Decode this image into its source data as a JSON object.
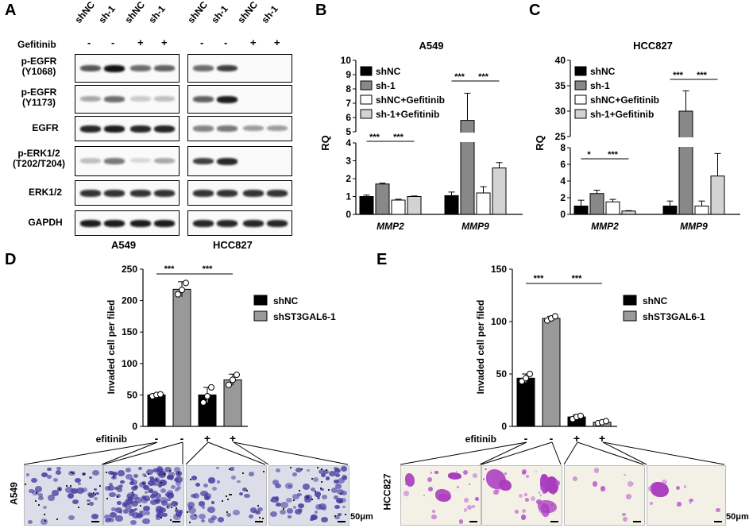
{
  "panels": {
    "A": {
      "letter": "A",
      "lanes": [
        "shNC",
        "sh-1",
        "shNC",
        "sh-1"
      ],
      "gefitinib_label": "Gefitinib",
      "gefitinib_signs": [
        "-",
        "-",
        "+",
        "+"
      ],
      "rows": [
        {
          "line1": "p-EGFR",
          "line2": "(Y1068)"
        },
        {
          "line1": "p-EGFR",
          "line2": "(Y1173)"
        },
        {
          "line1": "EGFR",
          "line2": ""
        },
        {
          "line1": "p-ERK1/2",
          "line2": "(T202/T204)"
        },
        {
          "line1": "ERK1/2",
          "line2": ""
        },
        {
          "line1": "GAPDH",
          "line2": ""
        }
      ],
      "cell_lines": [
        "A549",
        "HCC827"
      ],
      "band_intensity": {
        "A549": [
          [
            0.7,
            1.0,
            0.6,
            0.65
          ],
          [
            0.35,
            0.6,
            0.2,
            0.25
          ],
          [
            0.9,
            0.95,
            0.9,
            0.92
          ],
          [
            0.25,
            0.55,
            0.15,
            0.35
          ],
          [
            0.85,
            0.85,
            0.85,
            0.85
          ],
          [
            0.95,
            0.95,
            0.95,
            0.95
          ]
        ],
        "HCC827": [
          [
            0.6,
            0.8,
            0,
            0
          ],
          [
            0.65,
            0.95,
            0,
            0
          ],
          [
            0.5,
            0.55,
            0.4,
            0.4
          ],
          [
            0.8,
            0.9,
            0,
            0
          ],
          [
            0.85,
            0.85,
            0.85,
            0.85
          ],
          [
            0.9,
            0.9,
            0.9,
            0.9
          ]
        ]
      }
    },
    "B": {
      "letter": "B"
    },
    "C": {
      "letter": "C"
    },
    "D": {
      "letter": "D",
      "cell_line": "A549",
      "scale": "50μm"
    },
    "E": {
      "letter": "E",
      "cell_line": "HCC827",
      "scale": "50μm"
    }
  },
  "chart_data": [
    {
      "type": "bar",
      "panel": "B",
      "title": "A549",
      "ylabel": "RQ",
      "categories": [
        "MMP2",
        "MMP9"
      ],
      "yticks_lower": [
        0,
        1,
        2,
        3,
        4
      ],
      "yticks_upper": [
        5,
        6,
        7,
        8,
        9,
        10
      ],
      "axis_break": true,
      "ylim": [
        0,
        10
      ],
      "series": [
        {
          "name": "shNC",
          "color": "#000000",
          "values": [
            1.0,
            1.05
          ],
          "errors": [
            0.08,
            0.2
          ]
        },
        {
          "name": "sh-1",
          "color": "#888888",
          "values": [
            1.7,
            5.8
          ],
          "errors": [
            0.05,
            1.9
          ]
        },
        {
          "name": "shNC+Gefitinib",
          "color": "#ffffff",
          "values": [
            0.8,
            1.2
          ],
          "errors": [
            0.05,
            0.35
          ]
        },
        {
          "name": "sh-1+Gefitinib",
          "color": "#d3d3d3",
          "values": [
            1.0,
            2.6
          ],
          "errors": [
            0.03,
            0.3
          ]
        }
      ],
      "significance": [
        {
          "category": "MMP2",
          "labels": [
            "***",
            "***"
          ]
        },
        {
          "category": "MMP9",
          "labels": [
            "***",
            "***"
          ]
        }
      ]
    },
    {
      "type": "bar",
      "panel": "C",
      "title": "HCC827",
      "ylabel": "RQ",
      "categories": [
        "MMP2",
        "MMP9"
      ],
      "yticks_lower": [
        0,
        2,
        4,
        6,
        8
      ],
      "yticks_upper": [
        25,
        30,
        35,
        40
      ],
      "axis_break": true,
      "ylim": [
        0,
        40
      ],
      "series": [
        {
          "name": "shNC",
          "color": "#000000",
          "values": [
            1.0,
            1.0
          ],
          "errors": [
            0.7,
            0.6
          ]
        },
        {
          "name": "sh-1",
          "color": "#888888",
          "values": [
            2.5,
            30.0
          ],
          "errors": [
            0.4,
            4.0
          ]
        },
        {
          "name": "shNC+Gefitinib",
          "color": "#ffffff",
          "values": [
            1.5,
            1.0
          ],
          "errors": [
            0.3,
            0.6
          ]
        },
        {
          "name": "sh-1+Gefitinib",
          "color": "#d3d3d3",
          "values": [
            0.4,
            4.6
          ],
          "errors": [
            0.05,
            2.7
          ]
        }
      ],
      "significance": [
        {
          "category": "MMP2",
          "labels": [
            "*",
            "***"
          ]
        },
        {
          "category": "MMP9",
          "labels": [
            "***",
            "***"
          ]
        }
      ]
    },
    {
      "type": "bar",
      "panel": "D",
      "ylabel": "Invaded cell per filed",
      "yticks": [
        0,
        50,
        100,
        150,
        200,
        250
      ],
      "ylim": [
        0,
        250
      ],
      "gefitinib_label": "Gefitinib",
      "gefitinib_signs": [
        "-",
        "-",
        "+",
        "+"
      ],
      "bars": [
        {
          "series": "shNC",
          "value": 50,
          "error": 2,
          "points": [
            48,
            50,
            51
          ]
        },
        {
          "series": "shST3GAL6-1",
          "value": 218,
          "error": 12,
          "points": [
            210,
            217,
            228
          ]
        },
        {
          "series": "shNC",
          "value": 50,
          "error": 12,
          "points": [
            38,
            48,
            62
          ]
        },
        {
          "series": "shST3GAL6-1",
          "value": 74,
          "error": 9,
          "points": [
            66,
            74,
            82
          ]
        }
      ],
      "legend": [
        {
          "name": "shNC",
          "color": "#000000"
        },
        {
          "name": "shST3GAL6-1",
          "color": "#999999"
        }
      ],
      "significance": [
        "***",
        "***"
      ]
    },
    {
      "type": "bar",
      "panel": "E",
      "ylabel": "Invaded cell per filed",
      "yticks": [
        0,
        50,
        100,
        150
      ],
      "ylim": [
        0,
        150
      ],
      "gefitinib_label": "Gefitinib",
      "gefitinib_signs": [
        "-",
        "-",
        "+",
        "+"
      ],
      "bars": [
        {
          "series": "shNC",
          "value": 46,
          "error": 4,
          "points": [
            43,
            46,
            50
          ]
        },
        {
          "series": "shST3GAL6-1",
          "value": 103,
          "error": 2,
          "points": [
            101,
            103,
            105
          ]
        },
        {
          "series": "shNC",
          "value": 9,
          "error": 2,
          "points": [
            7,
            9,
            10
          ]
        },
        {
          "series": "shST3GAL6-1",
          "value": 4,
          "error": 1,
          "points": [
            3,
            4,
            5
          ]
        }
      ],
      "legend": [
        {
          "name": "shNC",
          "color": "#000000"
        },
        {
          "name": "shST3GAL6-1",
          "color": "#999999"
        }
      ],
      "significance": [
        "***",
        "***"
      ]
    }
  ]
}
